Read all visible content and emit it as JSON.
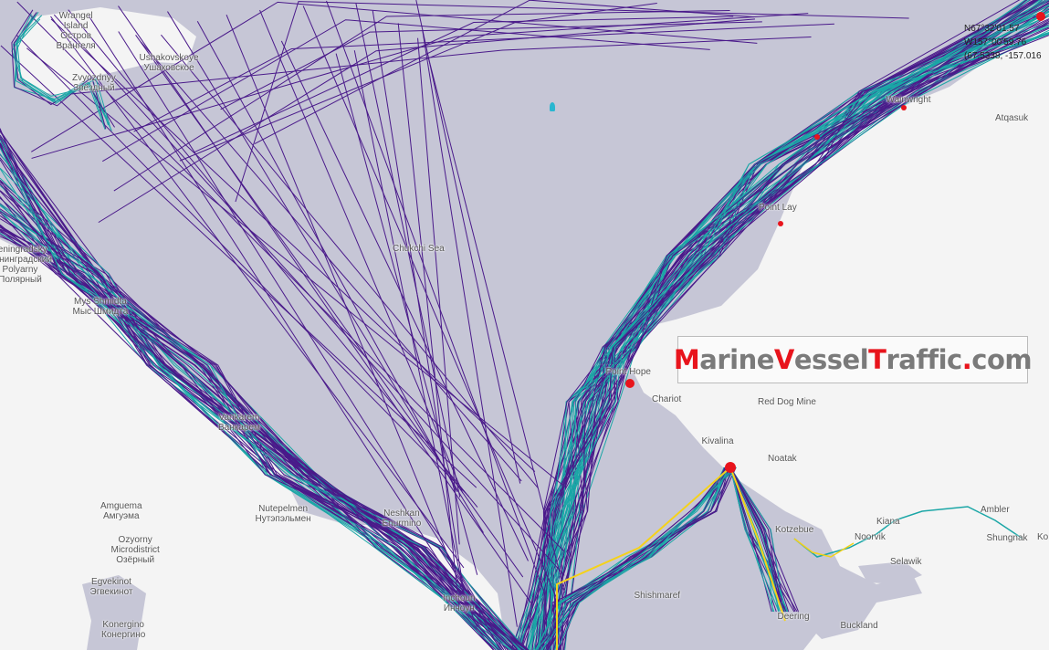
{
  "map": {
    "colors": {
      "sea": "#c6c6d6",
      "land": "#f4f4f4",
      "track_low": "#4a1a8a",
      "track_mid": "#1aa6a6",
      "track_high": "#f5d21a",
      "track_peak": "#e8141c"
    },
    "sea_label": "Chukchi Sea",
    "places": [
      {
        "id": "wrangel",
        "lines": [
          "Wrangel",
          "Island",
          "Остров",
          "Вра́нгеля"
        ]
      },
      {
        "id": "ushakovskoye",
        "lines": [
          "Ushakovskoye",
          "Ушаковское"
        ]
      },
      {
        "id": "zvezdnyy",
        "lines": [
          "Zvyozdnyy",
          "Звёздный"
        ]
      },
      {
        "id": "polyarny",
        "lines": [
          "Leningradsky",
          "Ленинградский",
          "Polyarny",
          "Полярный"
        ]
      },
      {
        "id": "mys-shmidta",
        "lines": [
          "Mys Shmidta",
          "Мыс Шмидта"
        ]
      },
      {
        "id": "vankarem",
        "lines": [
          "Vankarem",
          "Ванкарем"
        ]
      },
      {
        "id": "nutepelmen",
        "lines": [
          "Nutepelmen",
          "Нутэпэльмен"
        ]
      },
      {
        "id": "enurmino",
        "lines": [
          "Neshkan",
          "Enurmino"
        ]
      },
      {
        "id": "amguema",
        "lines": [
          "Amguema",
          "Амгуэма"
        ]
      },
      {
        "id": "ozyorny",
        "lines": [
          "Ozyorny",
          "Microdistrict",
          "Озёрный"
        ]
      },
      {
        "id": "egvekinot",
        "lines": [
          "Egvekinot",
          "Эгвекинот"
        ]
      },
      {
        "id": "konergino",
        "lines": [
          "Konergino",
          "Конергино"
        ]
      },
      {
        "id": "inchoun",
        "lines": [
          "Inchoun",
          "Инчоун"
        ]
      },
      {
        "id": "shishmaref",
        "lines": [
          "Shishmaref"
        ]
      },
      {
        "id": "wainwright",
        "lines": [
          "Wainwright"
        ]
      },
      {
        "id": "atqasuk",
        "lines": [
          "Atqasuk"
        ]
      },
      {
        "id": "point-lay",
        "lines": [
          "Point Lay"
        ]
      },
      {
        "id": "point-hope",
        "lines": [
          "Point Hope"
        ]
      },
      {
        "id": "chariot",
        "lines": [
          "Chariot"
        ]
      },
      {
        "id": "red-dog-mine",
        "lines": [
          "Red Dog Mine"
        ]
      },
      {
        "id": "kivalina",
        "lines": [
          "Kivalina"
        ]
      },
      {
        "id": "noatak",
        "lines": [
          "Noatak"
        ]
      },
      {
        "id": "kotzebue",
        "lines": [
          "Kotzebue"
        ]
      },
      {
        "id": "noorvik",
        "lines": [
          "Noorvik"
        ]
      },
      {
        "id": "kiana",
        "lines": [
          "Kiana"
        ]
      },
      {
        "id": "ambler",
        "lines": [
          "Ambler"
        ]
      },
      {
        "id": "shungnak",
        "lines": [
          "Shungnak"
        ]
      },
      {
        "id": "kobuk",
        "lines": [
          "Ko"
        ]
      },
      {
        "id": "selawik",
        "lines": [
          "Selawik"
        ]
      },
      {
        "id": "deering",
        "lines": [
          "Deering"
        ]
      },
      {
        "id": "buckland",
        "lines": [
          "Buckland"
        ]
      }
    ]
  },
  "cursor_coordinates": {
    "lat_dms": "N67°32'01.57",
    "lon_dms": "W157°00'59.76",
    "decimal": "(67.5338, -157.016"
  },
  "logo": {
    "parts": [
      {
        "text": "M",
        "accent": true
      },
      {
        "text": "arine",
        "accent": false
      },
      {
        "text": "V",
        "accent": true
      },
      {
        "text": "essel",
        "accent": false
      },
      {
        "text": "T",
        "accent": true
      },
      {
        "text": "raffic",
        "accent": false
      },
      {
        "text": ".",
        "accent": true
      },
      {
        "text": "com",
        "accent": false
      }
    ]
  }
}
